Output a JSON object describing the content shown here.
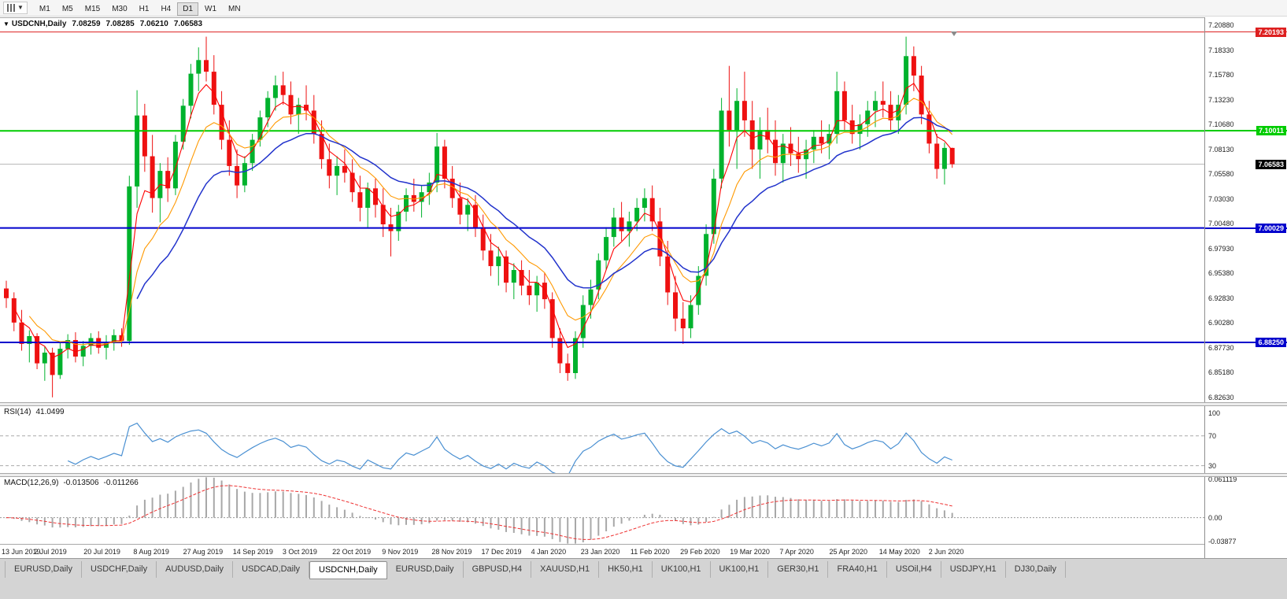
{
  "toolbar": {
    "timeframes": [
      "M1",
      "M5",
      "M15",
      "M30",
      "H1",
      "H4",
      "D1",
      "W1",
      "MN"
    ],
    "active_timeframe": "D1"
  },
  "title_bar": {
    "menu_glyph": "▼",
    "symbol": "USDCNH,Daily",
    "open": "7.08259",
    "high": "7.08285",
    "low": "7.06210",
    "close": "7.06583"
  },
  "colors": {
    "bull": "#00b22d",
    "bear": "#ee1111",
    "ma_fast": "#ff0000",
    "ma_mid": "#ff9900",
    "ma_slow": "#2233cc",
    "rsi_line": "#4a90d2",
    "macd_hist": "#a8a8a8",
    "macd_signal": "#ee3333",
    "hline_red": "#dd2020",
    "hline_green": "#00cc00",
    "hline_blue": "#0000cc"
  },
  "chart_data": {
    "type": "candlestick",
    "symbol": "USDCNH",
    "period": "Daily",
    "y_range": [
      6.821,
      7.204
    ],
    "y_axis_labels": [
      "7.20880",
      "7.18330",
      "7.15780",
      "7.13230",
      "7.10680",
      "7.08130",
      "7.05580",
      "7.03030",
      "7.00480",
      "6.97930",
      "6.95380",
      "6.92830",
      "6.90280",
      "6.87730",
      "6.85180",
      "6.82630"
    ],
    "x_axis_labels": [
      "13 Jun 2019",
      "2 Jul 2019",
      "20 Jul 2019",
      "8 Aug 2019",
      "27 Aug 2019",
      "14 Sep 2019",
      "3 Oct 2019",
      "22 Oct 2019",
      "9 Nov 2019",
      "28 Nov 2019",
      "17 Dec 2019",
      "4 Jan 2020",
      "23 Jan 2020",
      "11 Feb 2020",
      "29 Feb 2020",
      "19 Mar 2020",
      "7 Apr 2020",
      "25 Apr 2020",
      "14 May 2020",
      "2 Jun 2020"
    ],
    "horizontal_lines": [
      {
        "price": 7.20193,
        "label": "7.20193",
        "color": "#dd2020",
        "width": 1
      },
      {
        "price": 7.10011,
        "label": "7.10011",
        "color": "#00cc00",
        "width": 2
      },
      {
        "price": 7.00029,
        "label": "7.00029",
        "color": "#0000cc",
        "width": 2
      },
      {
        "price": 6.8825,
        "label": "6.88250",
        "color": "#0000cc",
        "width": 2
      }
    ],
    "current_price": {
      "price": 7.06583,
      "label": "7.06583",
      "line_color": "#b5b5b5",
      "tag_bg": "#000000"
    },
    "ohlc": [
      [
        6.938,
        6.946,
        6.918,
        6.928
      ],
      [
        6.928,
        6.934,
        6.894,
        6.903
      ],
      [
        6.903,
        6.916,
        6.874,
        6.881
      ],
      [
        6.881,
        6.895,
        6.862,
        6.889
      ],
      [
        6.889,
        6.892,
        6.855,
        6.861
      ],
      [
        6.861,
        6.878,
        6.843,
        6.872
      ],
      [
        6.872,
        6.877,
        6.826,
        6.849
      ],
      [
        6.849,
        6.882,
        6.845,
        6.876
      ],
      [
        6.876,
        6.891,
        6.866,
        6.885
      ],
      [
        6.885,
        6.893,
        6.862,
        6.868
      ],
      [
        6.868,
        6.884,
        6.858,
        6.879
      ],
      [
        6.879,
        6.892,
        6.87,
        6.887
      ],
      [
        6.887,
        6.894,
        6.871,
        6.877
      ],
      [
        6.877,
        6.89,
        6.865,
        6.883
      ],
      [
        6.883,
        6.896,
        6.874,
        6.89
      ],
      [
        6.89,
        6.897,
        6.878,
        6.884
      ],
      [
        6.884,
        7.054,
        6.88,
        7.043
      ],
      [
        7.043,
        7.142,
        7.021,
        7.116
      ],
      [
        7.116,
        7.128,
        7.058,
        7.074
      ],
      [
        7.074,
        7.096,
        7.016,
        7.031
      ],
      [
        7.031,
        7.067,
        7.006,
        7.059
      ],
      [
        7.059,
        7.073,
        7.027,
        7.041
      ],
      [
        7.041,
        7.096,
        7.034,
        7.089
      ],
      [
        7.089,
        7.133,
        7.081,
        7.126
      ],
      [
        7.126,
        7.169,
        7.113,
        7.159
      ],
      [
        7.159,
        7.186,
        7.141,
        7.173
      ],
      [
        7.173,
        7.197,
        7.151,
        7.161
      ],
      [
        7.161,
        7.178,
        7.117,
        7.127
      ],
      [
        7.127,
        7.141,
        7.081,
        7.091
      ],
      [
        7.091,
        7.111,
        7.054,
        7.064
      ],
      [
        7.064,
        7.081,
        7.031,
        7.044
      ],
      [
        7.044,
        7.074,
        7.037,
        7.067
      ],
      [
        7.067,
        7.097,
        7.059,
        7.091
      ],
      [
        7.091,
        7.121,
        7.084,
        7.114
      ],
      [
        7.114,
        7.141,
        7.104,
        7.134
      ],
      [
        7.134,
        7.157,
        7.121,
        7.147
      ],
      [
        7.147,
        7.161,
        7.127,
        7.137
      ],
      [
        7.137,
        7.151,
        7.107,
        7.117
      ],
      [
        7.117,
        7.134,
        7.097,
        7.127
      ],
      [
        7.127,
        7.147,
        7.111,
        7.121
      ],
      [
        7.121,
        7.137,
        7.087,
        7.097
      ],
      [
        7.097,
        7.111,
        7.061,
        7.071
      ],
      [
        7.071,
        7.087,
        7.041,
        7.054
      ],
      [
        7.054,
        7.074,
        7.034,
        7.064
      ],
      [
        7.064,
        7.081,
        7.047,
        7.057
      ],
      [
        7.057,
        7.071,
        7.027,
        7.037
      ],
      [
        7.037,
        7.054,
        7.007,
        7.021
      ],
      [
        7.021,
        7.047,
        7.001,
        7.041
      ],
      [
        7.041,
        7.051,
        7.011,
        7.024
      ],
      [
        7.024,
        7.041,
        6.991,
        7.004
      ],
      [
        7.004,
        7.021,
        6.971,
        6.997
      ],
      [
        6.997,
        7.024,
        6.987,
        7.017
      ],
      [
        7.017,
        7.041,
        7.007,
        7.034
      ],
      [
        7.034,
        7.051,
        7.017,
        7.027
      ],
      [
        7.027,
        7.044,
        7.011,
        7.037
      ],
      [
        7.037,
        7.057,
        7.024,
        7.047
      ],
      [
        7.047,
        7.098,
        7.037,
        7.084
      ],
      [
        7.084,
        7.091,
        7.041,
        7.051
      ],
      [
        7.051,
        7.064,
        7.021,
        7.031
      ],
      [
        7.031,
        7.047,
        7.004,
        7.014
      ],
      [
        7.014,
        7.031,
        6.997,
        7.024
      ],
      [
        7.024,
        7.034,
        6.991,
        7.001
      ],
      [
        7.001,
        7.014,
        6.967,
        6.977
      ],
      [
        6.977,
        6.994,
        6.951,
        6.961
      ],
      [
        6.961,
        6.981,
        6.941,
        6.971
      ],
      [
        6.971,
        6.977,
        6.934,
        6.944
      ],
      [
        6.944,
        6.964,
        6.927,
        6.957
      ],
      [
        6.957,
        6.967,
        6.931,
        6.941
      ],
      [
        6.941,
        6.957,
        6.921,
        6.931
      ],
      [
        6.931,
        6.951,
        6.914,
        6.944
      ],
      [
        6.944,
        6.954,
        6.917,
        6.927
      ],
      [
        6.927,
        6.934,
        6.877,
        6.887
      ],
      [
        6.887,
        6.897,
        6.851,
        6.861
      ],
      [
        6.861,
        6.871,
        6.843,
        6.851
      ],
      [
        6.851,
        6.894,
        6.845,
        6.887
      ],
      [
        6.887,
        6.931,
        6.877,
        6.921
      ],
      [
        6.921,
        6.947,
        6.907,
        6.937
      ],
      [
        6.937,
        6.974,
        6.927,
        6.967
      ],
      [
        6.967,
        7.001,
        6.957,
        6.991
      ],
      [
        6.991,
        7.021,
        6.981,
        7.011
      ],
      [
        7.011,
        7.027,
        6.987,
        6.997
      ],
      [
        6.997,
        7.017,
        6.981,
        7.007
      ],
      [
        7.007,
        7.031,
        6.997,
        7.021
      ],
      [
        7.021,
        7.041,
        7.007,
        7.031
      ],
      [
        7.031,
        7.044,
        6.997,
        7.007
      ],
      [
        7.007,
        7.021,
        6.961,
        6.971
      ],
      [
        6.971,
        6.987,
        6.921,
        6.934
      ],
      [
        6.934,
        6.951,
        6.894,
        6.907
      ],
      [
        6.907,
        6.924,
        6.881,
        6.897
      ],
      [
        6.897,
        6.931,
        6.887,
        6.921
      ],
      [
        6.921,
        6.961,
        6.911,
        6.951
      ],
      [
        6.951,
        7.004,
        6.941,
        6.994
      ],
      [
        6.994,
        7.061,
        6.984,
        7.051
      ],
      [
        7.051,
        7.134,
        7.041,
        7.121
      ],
      [
        7.121,
        7.167,
        7.084,
        7.101
      ],
      [
        7.101,
        7.144,
        7.061,
        7.131
      ],
      [
        7.131,
        7.161,
        7.094,
        7.111
      ],
      [
        7.111,
        7.131,
        7.061,
        7.081
      ],
      [
        7.081,
        7.114,
        7.051,
        7.101
      ],
      [
        7.101,
        7.124,
        7.077,
        7.091
      ],
      [
        7.091,
        7.111,
        7.054,
        7.067
      ],
      [
        7.067,
        7.097,
        7.047,
        7.087
      ],
      [
        7.087,
        7.104,
        7.064,
        7.077
      ],
      [
        7.077,
        7.094,
        7.057,
        7.071
      ],
      [
        7.071,
        7.091,
        7.051,
        7.081
      ],
      [
        7.081,
        7.101,
        7.067,
        7.094
      ],
      [
        7.094,
        7.111,
        7.077,
        7.087
      ],
      [
        7.087,
        7.107,
        7.071,
        7.097
      ],
      [
        7.097,
        7.161,
        7.087,
        7.141
      ],
      [
        7.141,
        7.151,
        7.101,
        7.111
      ],
      [
        7.111,
        7.127,
        7.087,
        7.097
      ],
      [
        7.097,
        7.117,
        7.081,
        7.107
      ],
      [
        7.107,
        7.131,
        7.094,
        7.121
      ],
      [
        7.121,
        7.141,
        7.104,
        7.131
      ],
      [
        7.131,
        7.151,
        7.114,
        7.127
      ],
      [
        7.127,
        7.141,
        7.101,
        7.111
      ],
      [
        7.111,
        7.137,
        7.097,
        7.127
      ],
      [
        7.127,
        7.197,
        7.117,
        7.177
      ],
      [
        7.177,
        7.187,
        7.141,
        7.157
      ],
      [
        7.157,
        7.167,
        7.107,
        7.117
      ],
      [
        7.117,
        7.131,
        7.077,
        7.087
      ],
      [
        7.087,
        7.097,
        7.051,
        7.061
      ],
      [
        7.061,
        7.088,
        7.045,
        7.0826
      ],
      [
        7.0826,
        7.0829,
        7.0621,
        7.06583
      ]
    ],
    "rsi": {
      "label": "RSI(14)",
      "value": "41.0499",
      "axis_labels": [
        "100",
        "70",
        "30"
      ],
      "dashed_levels": [
        70,
        30
      ]
    },
    "macd": {
      "label": "MACD(12,26,9)",
      "value_main": "-0.013506",
      "value_signal": "-0.011266",
      "axis_labels": [
        "0.061119",
        "0.00",
        "-0.03877"
      ]
    }
  },
  "bottom_tabs": {
    "items": [
      "EURUSD,Daily",
      "USDCHF,Daily",
      "AUDUSD,Daily",
      "USDCAD,Daily",
      "USDCNH,Daily",
      "EURUSD,Daily",
      "GBPUSD,H4",
      "XAUUSD,H1",
      "HK50,H1",
      "UK100,H1",
      "UK100,H1",
      "GER30,H1",
      "FRA40,H1",
      "USOil,H4",
      "USDJPY,H1",
      "DJ30,Daily"
    ],
    "active_index": 4
  }
}
